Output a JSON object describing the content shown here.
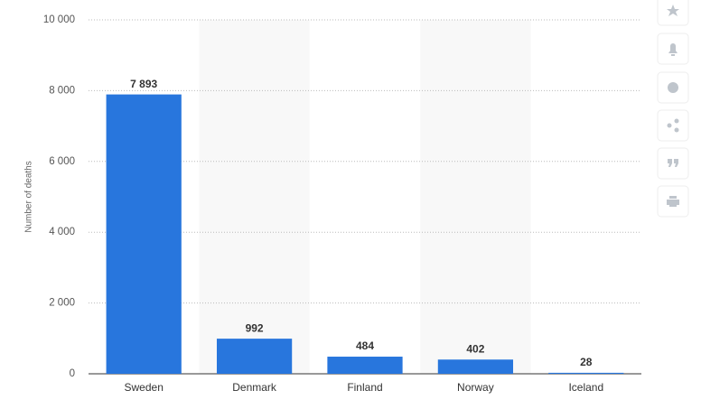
{
  "chart_data": {
    "type": "bar",
    "y_label": "Number of deaths",
    "categories": [
      "Sweden",
      "Denmark",
      "Finland",
      "Norway",
      "Iceland"
    ],
    "values": [
      7893,
      992,
      484,
      402,
      28
    ],
    "value_labels": [
      "7 893",
      "992",
      "484",
      "402",
      "28"
    ],
    "color": "#2876dd",
    "ylim": [
      0,
      10000
    ],
    "yticks": [
      0,
      {
        "value": 2000,
        "label": "2 000"
      },
      {
        "value": 4000,
        "label": "4 000"
      },
      {
        "value": 6000,
        "label": "6 000"
      },
      {
        "value": 8000,
        "label": "8 000"
      },
      {
        "value": 10000,
        "label": "10 000"
      }
    ],
    "grid": true
  }
}
